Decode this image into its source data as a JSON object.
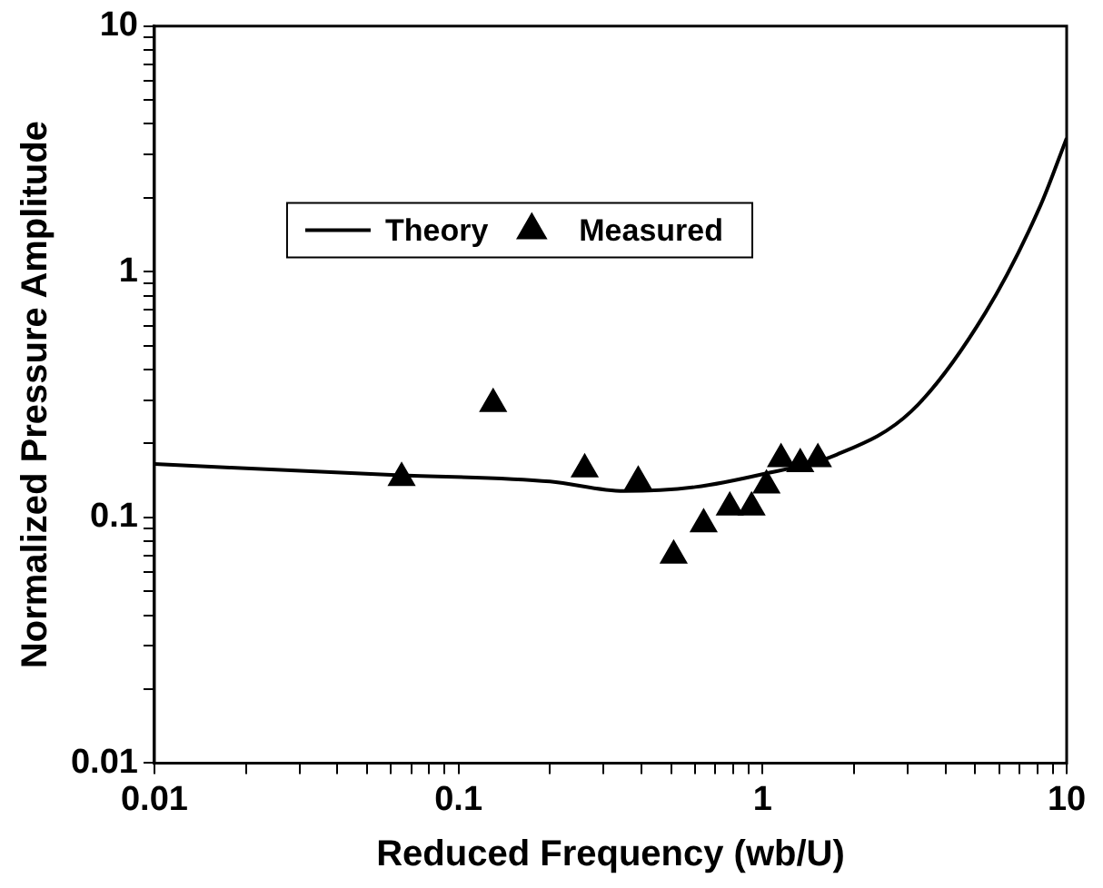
{
  "chart_data": {
    "type": "line",
    "xlabel": "Reduced Frequency (wb/U)",
    "ylabel": "Normalized Pressure Amplitude",
    "log": "xy",
    "xlim": [
      0.01,
      10
    ],
    "ylim": [
      0.01,
      10
    ],
    "xticks": [
      0.01,
      {
        "value": 0.02,
        "label": null
      },
      {
        "value": 0.03,
        "label": null
      },
      {
        "value": 0.04,
        "label": null
      },
      {
        "value": 0.05,
        "label": null
      },
      {
        "value": 0.06,
        "label": null
      },
      {
        "value": 0.07,
        "label": null
      },
      {
        "value": 0.08,
        "label": null
      },
      {
        "value": 0.09,
        "label": null
      },
      0.1,
      {
        "value": 0.2,
        "label": null
      },
      {
        "value": 0.3,
        "label": null
      },
      {
        "value": 0.4,
        "label": null
      },
      {
        "value": 0.5,
        "label": null
      },
      {
        "value": 0.6,
        "label": null
      },
      {
        "value": 0.7,
        "label": null
      },
      {
        "value": 0.8,
        "label": null
      },
      {
        "value": 0.9,
        "label": null
      },
      1,
      {
        "value": 2,
        "label": null
      },
      {
        "value": 3,
        "label": null
      },
      {
        "value": 4,
        "label": null
      },
      {
        "value": 5,
        "label": null
      },
      {
        "value": 6,
        "label": null
      },
      {
        "value": 7,
        "label": null
      },
      {
        "value": 8,
        "label": null
      },
      {
        "value": 9,
        "label": null
      },
      10
    ],
    "yticks": [
      0.01,
      {
        "value": 0.02,
        "label": null
      },
      {
        "value": 0.03,
        "label": null
      },
      {
        "value": 0.04,
        "label": null
      },
      {
        "value": 0.05,
        "label": null
      },
      {
        "value": 0.06,
        "label": null
      },
      {
        "value": 0.07,
        "label": null
      },
      {
        "value": 0.08,
        "label": null
      },
      {
        "value": 0.09,
        "label": null
      },
      0.1,
      {
        "value": 0.2,
        "label": null
      },
      {
        "value": 0.3,
        "label": null
      },
      {
        "value": 0.4,
        "label": null
      },
      {
        "value": 0.5,
        "label": null
      },
      {
        "value": 0.6,
        "label": null
      },
      {
        "value": 0.7,
        "label": null
      },
      {
        "value": 0.8,
        "label": null
      },
      {
        "value": 0.9,
        "label": null
      },
      1,
      {
        "value": 2,
        "label": null
      },
      {
        "value": 3,
        "label": null
      },
      {
        "value": 4,
        "label": null
      },
      {
        "value": 5,
        "label": null
      },
      {
        "value": 6,
        "label": null
      },
      {
        "value": 7,
        "label": null
      },
      {
        "value": 8,
        "label": null
      },
      {
        "value": 9,
        "label": null
      },
      10
    ],
    "grid": false,
    "legend": "top",
    "series": [
      {
        "name": "Theory",
        "color": "#000000",
        "marker": "none",
        "line_style": "solid",
        "x": [
          0.01,
          0.06,
          0.2,
          0.35,
          0.6,
          1,
          1.75,
          3.08,
          5.4,
          8.2,
          10
        ],
        "values": [
          0.165,
          0.149,
          0.14,
          0.128,
          0.133,
          0.15,
          0.18,
          0.27,
          0.68,
          1.86,
          3.5
        ]
      },
      {
        "name": "Measured",
        "type": "scatter",
        "color": "#000000",
        "marker": "triangle",
        "x": [
          0.065,
          0.13,
          0.26,
          0.39,
          0.51,
          0.64,
          0.78,
          0.92,
          1.03,
          1.15,
          1.33,
          1.52
        ],
        "values": [
          0.145,
          0.29,
          0.157,
          0.14,
          0.07,
          0.094,
          0.11,
          0.11,
          0.135,
          0.173,
          0.165,
          0.173
        ]
      }
    ]
  }
}
